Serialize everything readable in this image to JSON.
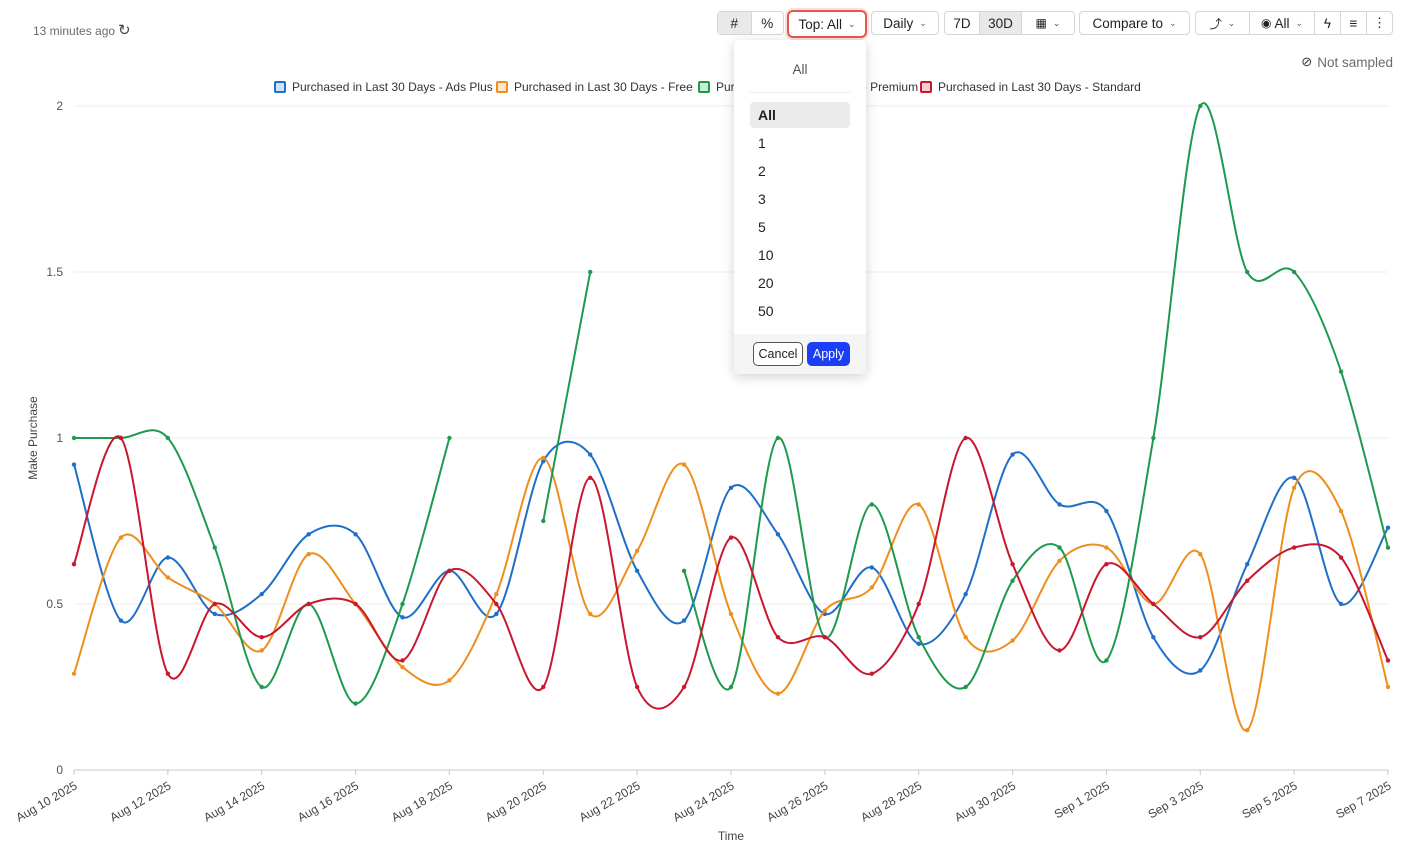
{
  "toolbar": {
    "updated_text": "13 minutes ago",
    "top_label": "Top: All",
    "granularity": "Daily",
    "range_7d": "7D",
    "range_30d": "30D",
    "compare_label": "Compare to",
    "visibility_label": "All"
  },
  "not_sampled": "Not sampled",
  "dropdown": {
    "header": "All",
    "options": [
      "All",
      "1",
      "2",
      "3",
      "5",
      "10",
      "20",
      "50"
    ],
    "selected": "All",
    "cancel_label": "Cancel",
    "apply_label": "Apply",
    "apply_color": "#1c3ef5"
  },
  "chart_data": {
    "type": "line",
    "xlabel": "Time",
    "ylabel": "Make Purchase",
    "ylim": [
      0,
      2
    ],
    "yticks": [
      0,
      0.5,
      1,
      1.5,
      2
    ],
    "grid": true,
    "legend_position": "top",
    "x": [
      "Aug 10 2025",
      "Aug 11 2025",
      "Aug 12 2025",
      "Aug 13 2025",
      "Aug 14 2025",
      "Aug 15 2025",
      "Aug 16 2025",
      "Aug 17 2025",
      "Aug 18 2025",
      "Aug 19 2025",
      "Aug 20 2025",
      "Aug 21 2025",
      "Aug 22 2025",
      "Aug 23 2025",
      "Aug 24 2025",
      "Aug 25 2025",
      "Aug 26 2025",
      "Aug 27 2025",
      "Aug 28 2025",
      "Aug 29 2025",
      "Aug 30 2025",
      "Aug 31 2025",
      "Sep 1 2025",
      "Sep 2 2025",
      "Sep 3 2025",
      "Sep 4 2025",
      "Sep 5 2025",
      "Sep 6 2025",
      "Sep 7 2025"
    ],
    "xtick_labels": [
      "Aug 10 2025",
      "Aug 12 2025",
      "Aug 14 2025",
      "Aug 16 2025",
      "Aug 18 2025",
      "Aug 20 2025",
      "Aug 22 2025",
      "Aug 24 2025",
      "Aug 26 2025",
      "Aug 28 2025",
      "Aug 30 2025",
      "Sep 1 2025",
      "Sep 3 2025",
      "Sep 5 2025",
      "Sep 7 2025"
    ],
    "series": [
      {
        "name": "Purchased in Last 30 Days - Ads Plus",
        "color": "#1f6fc8",
        "values": [
          0.92,
          0.45,
          0.64,
          0.47,
          0.53,
          0.71,
          0.71,
          0.46,
          0.6,
          0.47,
          0.93,
          0.95,
          0.6,
          0.45,
          0.85,
          0.71,
          0.47,
          0.61,
          0.38,
          0.53,
          0.95,
          0.8,
          0.78,
          0.4,
          0.3,
          0.62,
          0.88,
          0.5,
          0.73
        ]
      },
      {
        "name": "Purchased in Last 30 Days - Free",
        "color": "#ee8f1d",
        "values": [
          0.29,
          0.7,
          0.58,
          0.5,
          0.36,
          0.65,
          0.5,
          0.31,
          0.27,
          0.53,
          0.94,
          0.47,
          0.66,
          0.92,
          0.47,
          0.23,
          0.48,
          0.55,
          0.8,
          0.4,
          0.39,
          0.63,
          0.67,
          0.5,
          0.65,
          0.12,
          0.85,
          0.78,
          0.25
        ]
      },
      {
        "name": "Purchased in Last 30 Days - Premium",
        "color": "#1e9a4e",
        "values": [
          1.0,
          1.0,
          1.0,
          0.67,
          0.25,
          0.5,
          0.2,
          0.5,
          1.0,
          null,
          0.75,
          1.5,
          null,
          0.6,
          0.25,
          1.0,
          0.4,
          0.8,
          0.4,
          0.25,
          0.57,
          0.67,
          0.33,
          1.0,
          2.0,
          1.5,
          1.5,
          1.2,
          0.67
        ]
      },
      {
        "name": "Purchased in Last 30 Days - Standard",
        "color": "#c8172f",
        "values": [
          0.62,
          1.0,
          0.29,
          0.5,
          0.4,
          0.5,
          0.5,
          0.33,
          0.6,
          0.5,
          0.25,
          0.88,
          0.25,
          0.25,
          0.7,
          0.4,
          0.4,
          0.29,
          0.5,
          1.0,
          0.62,
          0.36,
          0.62,
          0.5,
          0.4,
          0.57,
          0.67,
          0.64,
          0.33
        ]
      }
    ]
  }
}
